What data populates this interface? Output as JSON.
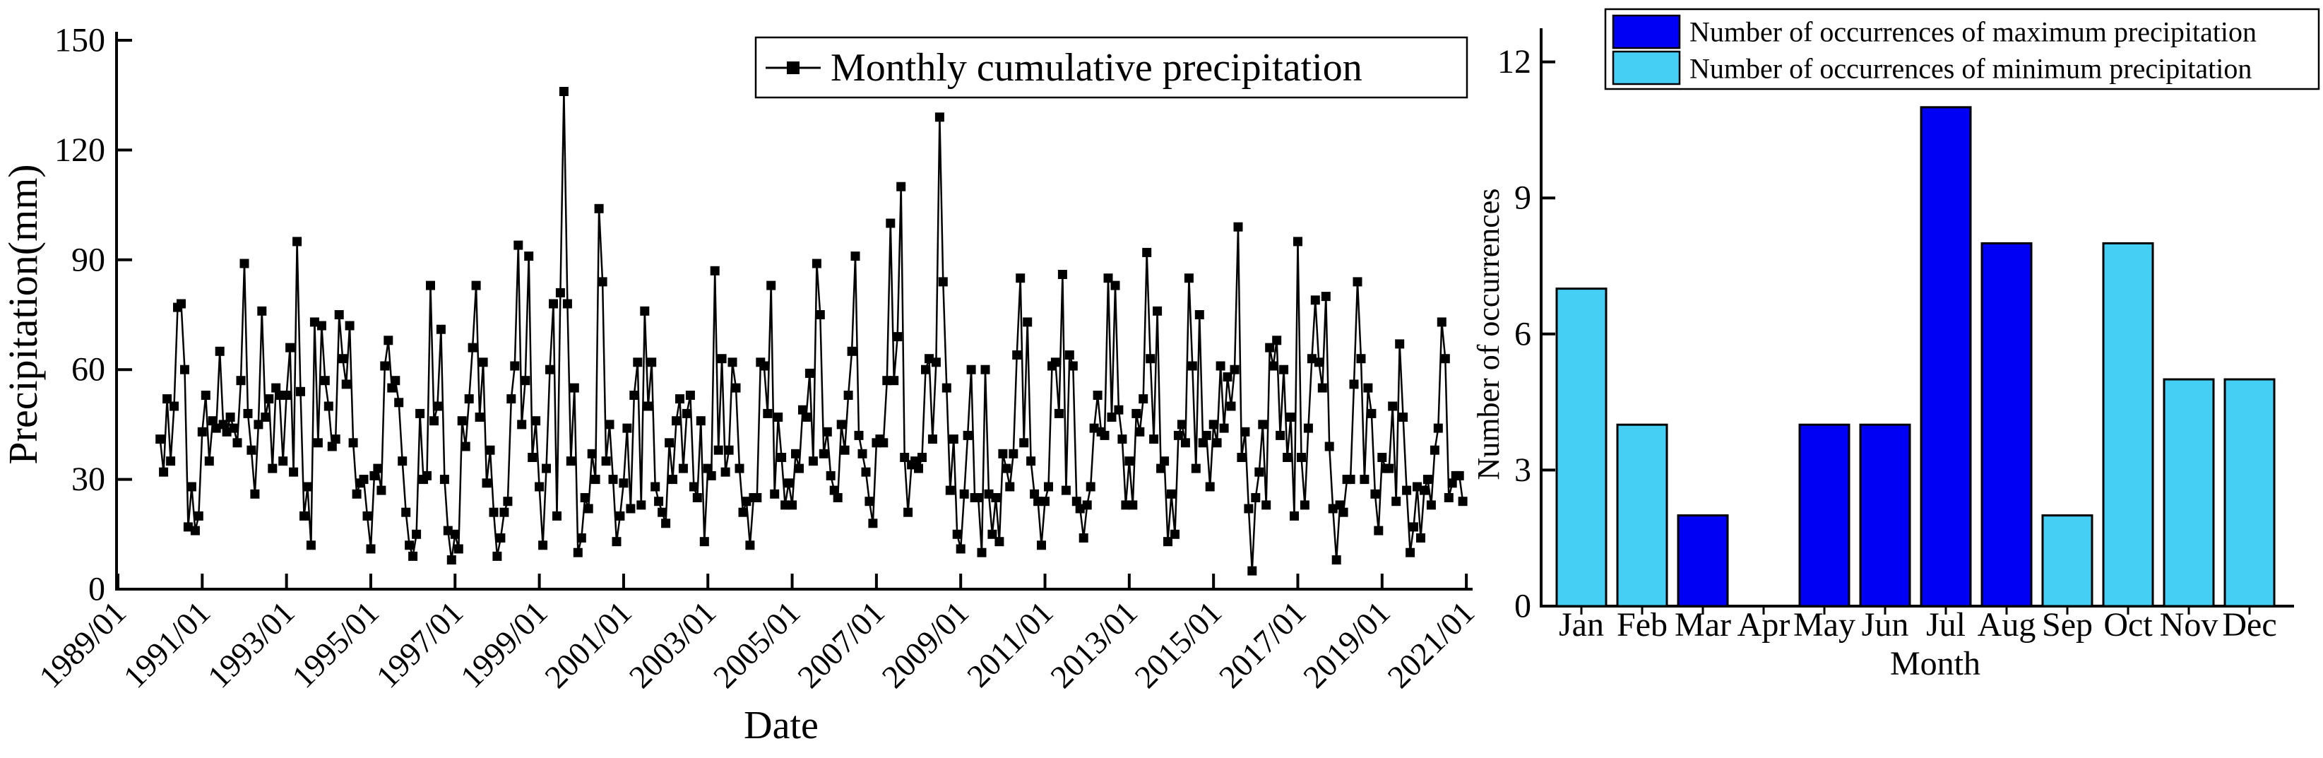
{
  "figure": {
    "background": "#ffffff",
    "line_color": "#000000",
    "max_bar_color": "#0000F5",
    "min_bar_color": "#46CFF5"
  },
  "chart_data": [
    {
      "type": "line",
      "title": "",
      "xlabel": "Date",
      "ylabel": "Precipitation(mm)",
      "legend": [
        "Monthly cumulative precipitation"
      ],
      "legend_position": "upper right",
      "marker": "filled-square",
      "line_color": "#000000",
      "ylim": [
        0,
        150
      ],
      "yticks": [
        0,
        30,
        60,
        90,
        120,
        150
      ],
      "x_tick_labels": [
        "1989/01",
        "1991/01",
        "1993/01",
        "1995/01",
        "1997/01",
        "1999/01",
        "2001/01",
        "2003/01",
        "2005/01",
        "2007/01",
        "2009/01",
        "2011/01",
        "2013/01",
        "2015/01",
        "2017/01",
        "2019/01",
        "2021/01"
      ],
      "x_start": "1990/01",
      "x_end": "2020/12",
      "x_interval": "month",
      "grid": false,
      "values": [
        41,
        32,
        52,
        35,
        50,
        77,
        78,
        60,
        17,
        28,
        16,
        20,
        43,
        53,
        35,
        46,
        44,
        65,
        45,
        43,
        47,
        44,
        40,
        57,
        89,
        48,
        38,
        26,
        45,
        76,
        47,
        52,
        33,
        55,
        53,
        35,
        53,
        66,
        32,
        95,
        54,
        20,
        28,
        12,
        73,
        40,
        72,
        57,
        50,
        39,
        41,
        75,
        63,
        56,
        72,
        40,
        26,
        29,
        30,
        20,
        11,
        31,
        33,
        27,
        61,
        68,
        55,
        57,
        51,
        35,
        21,
        12,
        9,
        15,
        48,
        30,
        31,
        83,
        46,
        50,
        71,
        30,
        16,
        8,
        15,
        11,
        46,
        39,
        52,
        66,
        83,
        47,
        62,
        29,
        38,
        21,
        9,
        14,
        21,
        24,
        52,
        61,
        94,
        45,
        57,
        91,
        36,
        46,
        28,
        12,
        33,
        60,
        78,
        20,
        81,
        136,
        78,
        35,
        55,
        10,
        14,
        25,
        22,
        37,
        30,
        104,
        84,
        35,
        45,
        30,
        13,
        20,
        29,
        44,
        22,
        53,
        62,
        23,
        76,
        50,
        62,
        28,
        24,
        21,
        18,
        40,
        30,
        46,
        52,
        33,
        48,
        53,
        28,
        25,
        46,
        13,
        33,
        31,
        87,
        38,
        63,
        32,
        38,
        62,
        55,
        33,
        21,
        24,
        12,
        25,
        25,
        62,
        61,
        48,
        83,
        26,
        47,
        36,
        23,
        29,
        23,
        37,
        33,
        49,
        47,
        59,
        35,
        89,
        75,
        37,
        43,
        31,
        27,
        25,
        45,
        38,
        53,
        65,
        91,
        42,
        37,
        32,
        24,
        18,
        40,
        41,
        40,
        57,
        100,
        57,
        69,
        110,
        36,
        21,
        34,
        35,
        33,
        36,
        60,
        63,
        41,
        62,
        129,
        84,
        55,
        27,
        41,
        15,
        11,
        26,
        42,
        60,
        25,
        25,
        10,
        60,
        26,
        15,
        25,
        13,
        37,
        33,
        28,
        37,
        64,
        85,
        40,
        73,
        35,
        26,
        24,
        12,
        24,
        28,
        61,
        62,
        48,
        86,
        27,
        64,
        61,
        24,
        22,
        14,
        23,
        28,
        44,
        53,
        43,
        42,
        85,
        47,
        83,
        49,
        41,
        23,
        35,
        23,
        48,
        43,
        52,
        92,
        63,
        41,
        76,
        33,
        35,
        13,
        26,
        15,
        42,
        45,
        40,
        85,
        61,
        33,
        75,
        40,
        42,
        28,
        45,
        40,
        61,
        44,
        58,
        50,
        60,
        99,
        36,
        43,
        22,
        5,
        25,
        32,
        45,
        23,
        66,
        61,
        68,
        42,
        60,
        36,
        47,
        20,
        95,
        36,
        23,
        44,
        63,
        79,
        62,
        55,
        80,
        39,
        22,
        8,
        23,
        21,
        30,
        30,
        56,
        84,
        63,
        30,
        55,
        48,
        26,
        16,
        36,
        33,
        33,
        50,
        24,
        67,
        47,
        27,
        10,
        17,
        28,
        14,
        27,
        30,
        23,
        38,
        44,
        73,
        63,
        25,
        29,
        31,
        31,
        24
      ]
    },
    {
      "type": "bar",
      "title": "",
      "xlabel": "Month",
      "ylabel": "Number of occurrences",
      "categories": [
        "Jan",
        "Feb",
        "Mar",
        "Apr",
        "May",
        "Jun",
        "Jul",
        "Aug",
        "Sep",
        "Oct",
        "Nov",
        "Dec"
      ],
      "series": [
        {
          "name": "Number of occurrences of maximum precipitation",
          "color": "#0000F5",
          "values": [
            0,
            0,
            2,
            0,
            4,
            4,
            11,
            8,
            0,
            0,
            0,
            0
          ]
        },
        {
          "name": "Number of occurrences of minimum precipitation",
          "color": "#46CFF5",
          "values": [
            7,
            4,
            0,
            0,
            0,
            0,
            0,
            0,
            2,
            8,
            5,
            5
          ]
        }
      ],
      "ylim": [
        0,
        13
      ],
      "yticks": [
        0,
        3,
        6,
        9,
        12
      ],
      "legend_position": "upper right",
      "grid": false
    }
  ]
}
